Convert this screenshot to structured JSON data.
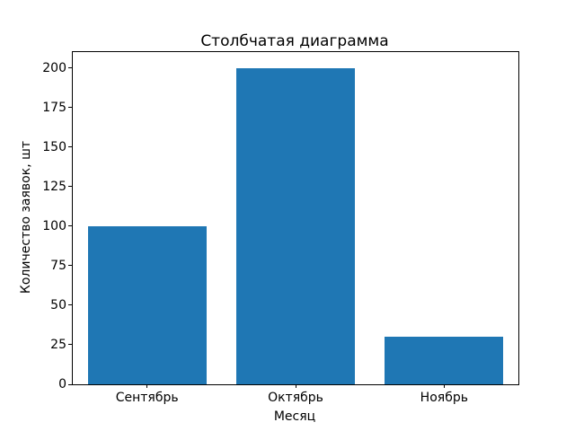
{
  "figure": {
    "background": "#ffffff",
    "text_color": "#000000"
  },
  "chart_data": {
    "type": "bar",
    "title": "Столбчатая диаграмма",
    "xlabel": "Месяц",
    "ylabel": "Количество заявок, шт",
    "categories": [
      "Сентябрь",
      "Октябрь",
      "Ноябрь"
    ],
    "values": [
      100,
      200,
      30
    ],
    "yticks": [
      0,
      25,
      50,
      75,
      100,
      125,
      150,
      175,
      200
    ],
    "ylim": [
      0,
      210
    ],
    "bar_color": "#1f77b4",
    "bar_width_fraction": 0.8,
    "grid": false,
    "legend": "none"
  }
}
